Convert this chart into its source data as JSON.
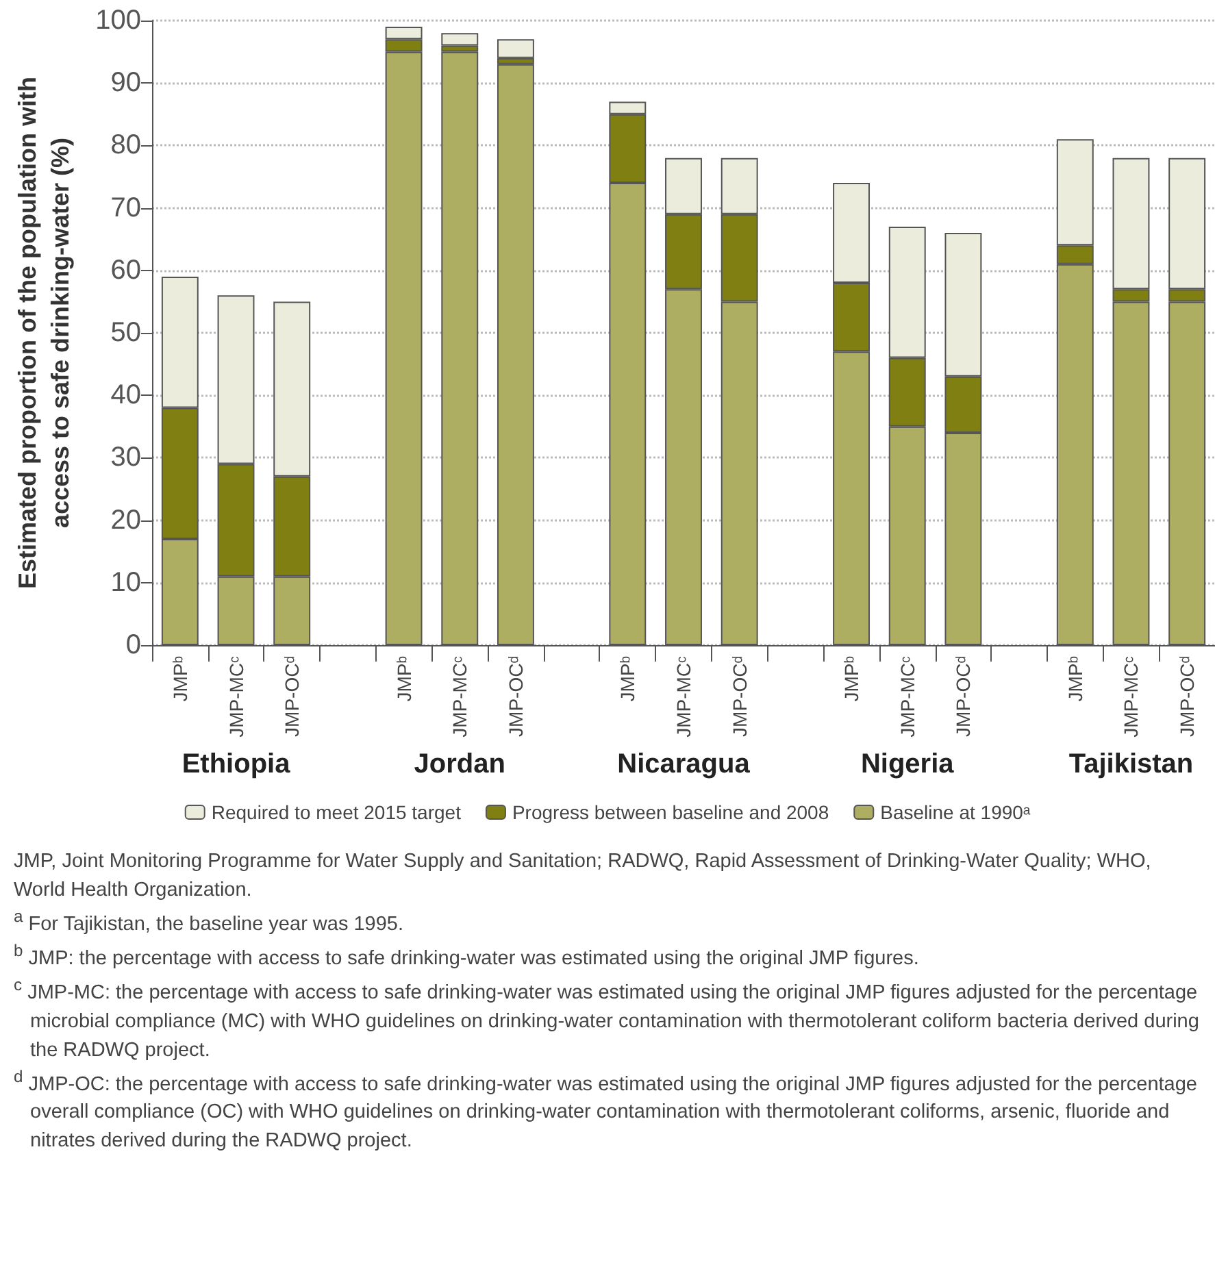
{
  "chart_data": {
    "type": "bar",
    "stacked": true,
    "ylabel": "Estimated proportion of the population with\naccess to safe drinking-water (%)",
    "categories": [
      "JMPᵇ",
      "JMP-MCᶜ",
      "JMP-OCᵈ",
      null,
      "JMPᵇ",
      "JMP-MCᶜ",
      "JMP-OCᵈ",
      null,
      "JMPᵇ",
      "JMP-MCᶜ",
      "JMP-OCᵈ",
      null,
      "JMPᵇ",
      "JMP-MCᶜ",
      "JMP-OCᵈ",
      null,
      "JMPᵇ",
      "JMP-MCᶜ",
      "JMP-OCᵈ"
    ],
    "series": [
      {
        "name": "Baseline at 1990ᵃ",
        "color": "#aeae62",
        "values": [
          17,
          11,
          11,
          null,
          95,
          95,
          93,
          null,
          74,
          57,
          55,
          null,
          47,
          35,
          34,
          null,
          61,
          55,
          55
        ]
      },
      {
        "name": "Progress between baseline and 2008",
        "color": "#7f7f12",
        "values": [
          21,
          18,
          16,
          null,
          2,
          1,
          1,
          null,
          11,
          12,
          14,
          null,
          11,
          11,
          9,
          null,
          3,
          2,
          2
        ]
      },
      {
        "name": "Required to meet 2015 target",
        "color": "#ececdc",
        "values": [
          21,
          27,
          28,
          null,
          2,
          2,
          3,
          null,
          2,
          9,
          9,
          null,
          16,
          21,
          23,
          null,
          17,
          21,
          21
        ]
      }
    ],
    "ylim": [
      0,
      100
    ],
    "yticks": [
      0,
      10,
      20,
      30,
      40,
      50,
      60,
      70,
      80,
      90,
      100
    ],
    "grid": "y",
    "legend": "bottom",
    "annotations": [
      "Ethiopia",
      "Jordan",
      "Nicaragua",
      "Nigeria",
      "Tajikistan",
      "JMP, Joint Monitoring Programme for Water Supply and Sanitation; RADWQ, Rapid Assessment of Drinking-Water Quality; WHO, World Health Organization.",
      "$^{a}$ For Tajikistan, the baseline year was 1995.",
      "$^{b}$ JMP: the percentage with access to safe drinking-water was estimated using the original JMP figures.",
      "$^{c}$ JMP-MC: the percentage with access to safe drinking-water was estimated using the original JMP figures adjusted for the percentage microbial compliance (MC) with WHO guidelines on drinking-water contamination with thermotolerant coliform bacteria derived during the RADWQ project.",
      "$^{d}$ JMP-OC: the percentage with access to safe drinking-water was estimated using the original JMP figures adjusted for the percentage overall compliance (OC) with WHO guidelines on drinking-water contamination with thermotolerant coliforms, arsenic, fluoride and nitrates derived during the RADWQ project."
    ]
  }
}
